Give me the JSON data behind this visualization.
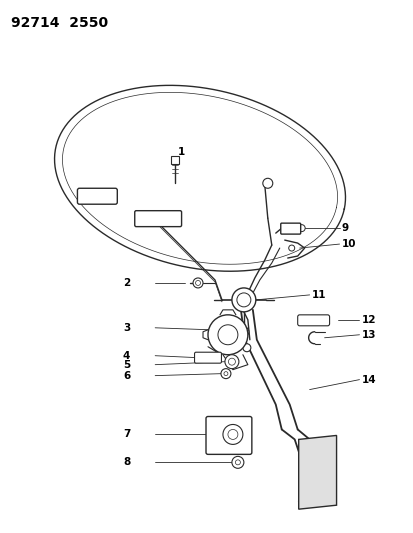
{
  "title": "92714  2550",
  "bg_color": "#ffffff",
  "line_color": "#2a2a2a",
  "text_color": "#000000",
  "fig_width": 4.14,
  "fig_height": 5.33,
  "dpi": 100
}
